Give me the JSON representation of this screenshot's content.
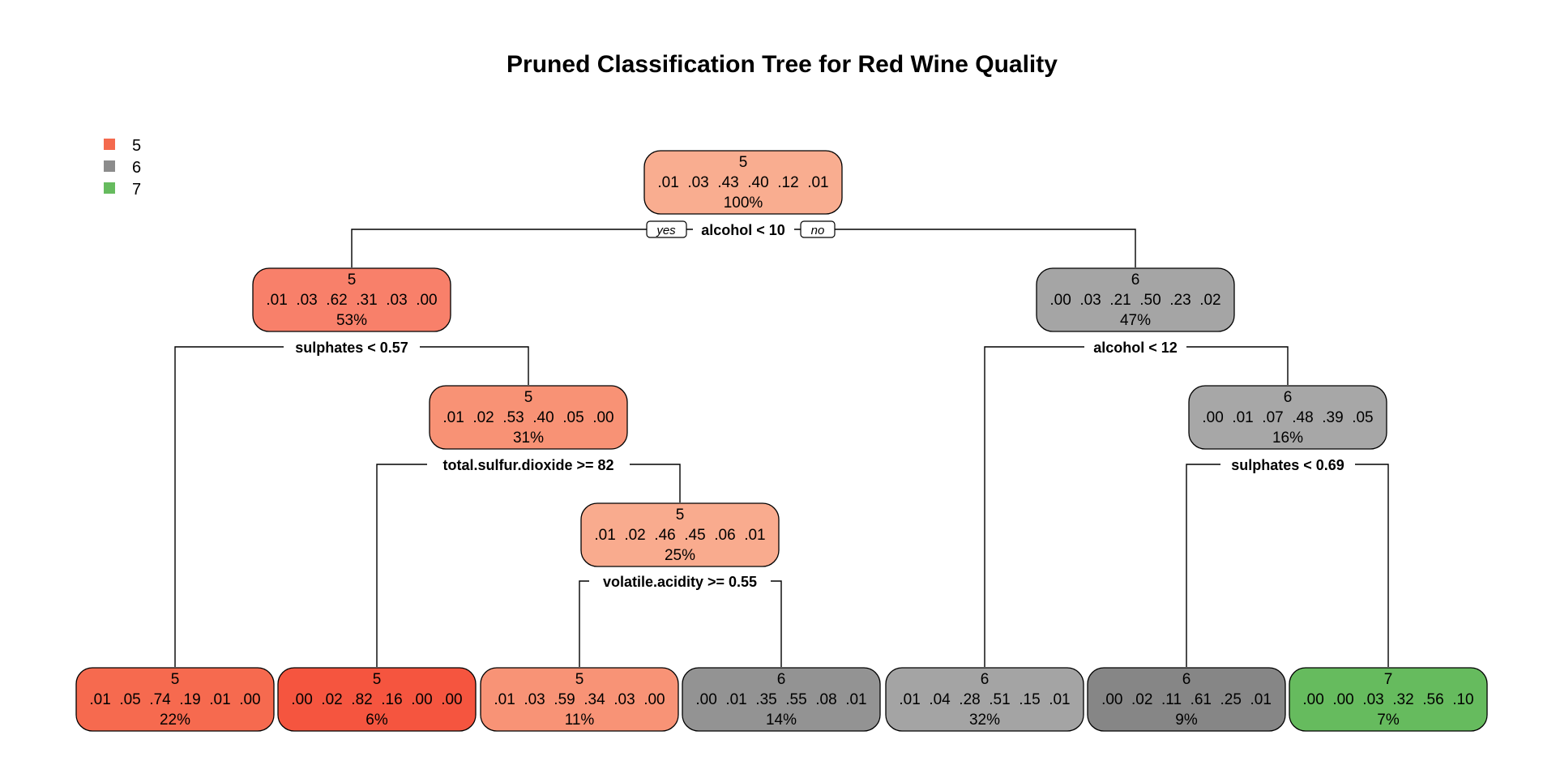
{
  "title": "Pruned Classification Tree for Red Wine Quality",
  "legend": [
    {
      "label": "5",
      "color": "#f46a4e"
    },
    {
      "label": "6",
      "color": "#8c8c8c"
    },
    {
      "label": "7",
      "color": "#66bb5e"
    }
  ],
  "branch_labels": {
    "yes": "yes",
    "no": "no"
  },
  "nodes": [
    {
      "id": "n1",
      "cls": "5",
      "probs": ".01  .03  .43  .40  .12  .01",
      "pct": "100%",
      "fill": "#f9ad90"
    },
    {
      "id": "n2",
      "cls": "5",
      "probs": ".01  .03  .62  .31  .03  .00",
      "pct": "53%",
      "fill": "#f8806a"
    },
    {
      "id": "n3",
      "cls": "6",
      "probs": ".00  .03  .21  .50  .23  .02",
      "pct": "47%",
      "fill": "#a5a5a5"
    },
    {
      "id": "n4",
      "cls": "5",
      "probs": ".01  .02  .53  .40  .05  .00",
      "pct": "31%",
      "fill": "#f89275"
    },
    {
      "id": "n5",
      "cls": "6",
      "probs": ".00  .01  .07  .48  .39  .05",
      "pct": "16%",
      "fill": "#a7a7a7"
    },
    {
      "id": "n6",
      "cls": "5",
      "probs": ".01  .02  .46  .45  .06  .01",
      "pct": "25%",
      "fill": "#f9ab8e"
    },
    {
      "id": "l1",
      "cls": "5",
      "probs": ".01  .05  .74  .19  .01  .00",
      "pct": "22%",
      "fill": "#f66a4f"
    },
    {
      "id": "l2",
      "cls": "5",
      "probs": ".00  .02  .82  .16  .00  .00",
      "pct": "6%",
      "fill": "#f5553f"
    },
    {
      "id": "l3",
      "cls": "5",
      "probs": ".01  .03  .59  .34  .03  .00",
      "pct": "11%",
      "fill": "#f89376"
    },
    {
      "id": "l4",
      "cls": "6",
      "probs": ".00  .01  .35  .55  .08  .01",
      "pct": "14%",
      "fill": "#939393"
    },
    {
      "id": "l5",
      "cls": "6",
      "probs": ".01  .04  .28  .51  .15  .01",
      "pct": "32%",
      "fill": "#a4a4a4"
    },
    {
      "id": "l6",
      "cls": "6",
      "probs": ".00  .02  .11  .61  .25  .01",
      "pct": "9%",
      "fill": "#868686"
    },
    {
      "id": "l7",
      "cls": "7",
      "probs": ".00  .00  .03  .32  .56  .10",
      "pct": "7%",
      "fill": "#66bb5e"
    }
  ],
  "splits": [
    {
      "id": "s1",
      "label": "alcohol < 10"
    },
    {
      "id": "s2",
      "label": "sulphates < 0.57"
    },
    {
      "id": "s3",
      "label": "alcohol < 12"
    },
    {
      "id": "s4",
      "label": "total.sulfur.dioxide >= 82"
    },
    {
      "id": "s5",
      "label": "sulphates < 0.69"
    },
    {
      "id": "s6",
      "label": "volatile.acidity >= 0.55"
    }
  ]
}
